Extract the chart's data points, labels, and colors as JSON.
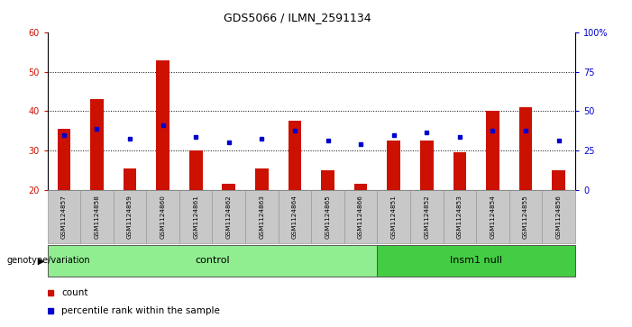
{
  "title": "GDS5066 / ILMN_2591134",
  "samples": [
    "GSM1124857",
    "GSM1124858",
    "GSM1124859",
    "GSM1124860",
    "GSM1124861",
    "GSM1124862",
    "GSM1124863",
    "GSM1124864",
    "GSM1124865",
    "GSM1124866",
    "GSM1124851",
    "GSM1124852",
    "GSM1124853",
    "GSM1124854",
    "GSM1124855",
    "GSM1124856"
  ],
  "counts": [
    35.5,
    43.0,
    25.5,
    53.0,
    30.0,
    21.5,
    25.5,
    37.5,
    25.0,
    21.5,
    32.5,
    32.5,
    29.5,
    40.0,
    41.0,
    25.0
  ],
  "percentiles": [
    34.0,
    35.5,
    33.0,
    36.5,
    33.5,
    32.0,
    33.0,
    35.0,
    32.5,
    31.5,
    34.0,
    34.5,
    33.5,
    35.0,
    35.0,
    32.5
  ],
  "groups": [
    "control",
    "control",
    "control",
    "control",
    "control",
    "control",
    "control",
    "control",
    "control",
    "control",
    "Insm1 null",
    "Insm1 null",
    "Insm1 null",
    "Insm1 null",
    "Insm1 null",
    "Insm1 null"
  ],
  "bar_color": "#CC1100",
  "dot_color": "#0000CC",
  "ymin": 20,
  "ymax": 60,
  "yticks_left": [
    20,
    30,
    40,
    50,
    60
  ],
  "yticks_right": [
    0,
    25,
    50,
    75,
    100
  ],
  "ytick_labels_right": [
    "0",
    "25",
    "50",
    "75",
    "100%"
  ],
  "grid_values": [
    30,
    40,
    50
  ],
  "baseline": 20,
  "bar_width": 0.4,
  "group_label": "genotype/variation",
  "legend_count": "count",
  "legend_percentile": "percentile rank within the sample",
  "left_tick_color": "#CC1100",
  "right_tick_color": "#0000CC",
  "control_bg": "#90EE90",
  "insm1_bg": "#44CC44",
  "sample_bg": "#C8C8C8"
}
